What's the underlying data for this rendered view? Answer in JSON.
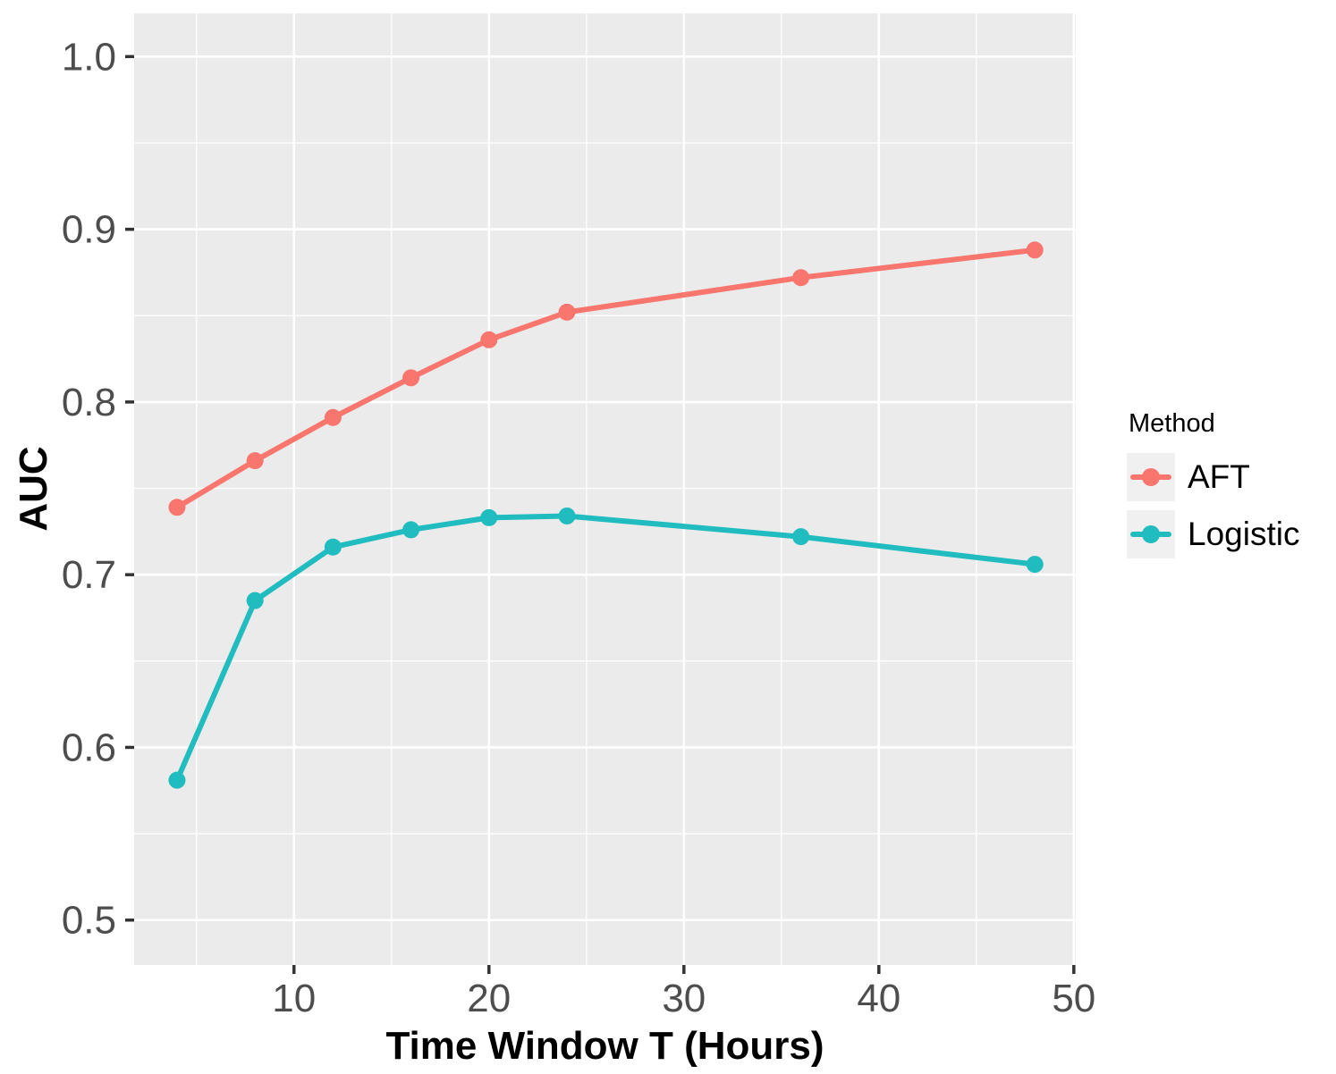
{
  "chart_data": {
    "type": "line",
    "title": "",
    "xlabel": "Time Window T (Hours)",
    "ylabel": "AUC",
    "x": [
      4,
      8,
      12,
      16,
      20,
      24,
      36,
      48
    ],
    "series": [
      {
        "name": "AFT",
        "color": "#F8766D",
        "values": [
          0.739,
          0.766,
          0.791,
          0.814,
          0.836,
          0.852,
          0.872,
          0.888
        ]
      },
      {
        "name": "Logistic",
        "color": "#20BCBF",
        "values": [
          0.581,
          0.685,
          0.716,
          0.726,
          0.733,
          0.734,
          0.722,
          0.706
        ]
      }
    ],
    "xlim": [
      1.8,
      50.1
    ],
    "ylim": [
      0.474,
      1.025
    ],
    "x_ticks": [
      {
        "v": 10,
        "label": "10"
      },
      {
        "v": 20,
        "label": "20"
      },
      {
        "v": 30,
        "label": "30"
      },
      {
        "v": 40,
        "label": "40"
      },
      {
        "v": 50,
        "label": "50"
      }
    ],
    "y_ticks": [
      {
        "v": 0.5,
        "label": "0.5"
      },
      {
        "v": 0.6,
        "label": "0.6"
      },
      {
        "v": 0.7,
        "label": "0.7"
      },
      {
        "v": 0.8,
        "label": "0.8"
      },
      {
        "v": 0.9,
        "label": "0.9"
      },
      {
        "v": 1.0,
        "label": "1.0"
      }
    ],
    "x_minor": [
      5,
      15,
      25,
      35,
      45
    ],
    "y_minor": [
      0.55,
      0.65,
      0.75,
      0.85,
      0.95
    ],
    "grid": true,
    "legend": {
      "title": "Method",
      "position": "right"
    },
    "colors": {
      "panel_bg": "#EBEBEB",
      "grid": "#FFFFFF",
      "tick_mark": "#333333",
      "tick_label": "#4D4D4D",
      "axis_title": "#000000",
      "legend_key_bg": "#F0F0F0"
    }
  }
}
